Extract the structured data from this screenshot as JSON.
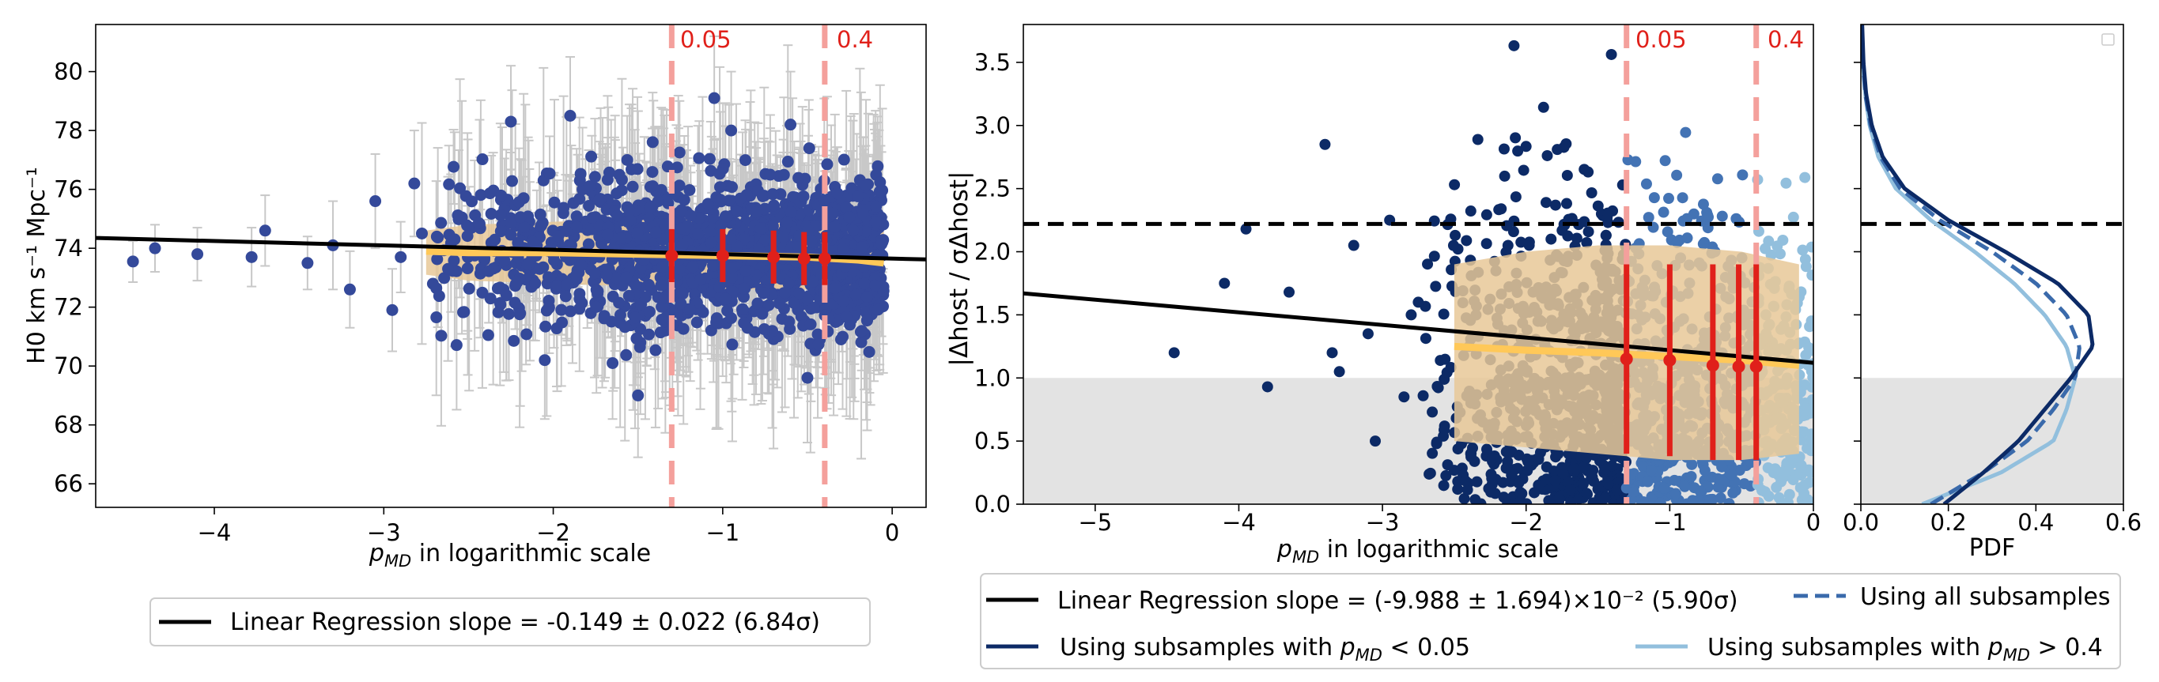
{
  "chart_data": [
    {
      "type": "scatter",
      "panel": "left",
      "xlabel_main": "p",
      "xlabel_sub": "MD",
      "xlabel_rest": " in logarithmic scale",
      "ylabel": "H0 km s⁻¹ Mpc⁻¹",
      "xlim": [
        -4.7,
        0.2
      ],
      "ylim": [
        65.2,
        81.6
      ],
      "xticks": [
        -4,
        -3,
        -2,
        -1,
        0
      ],
      "xtick_labels": [
        "−4",
        "−3",
        "−2",
        "−1",
        "0"
      ],
      "yticks": [
        66,
        68,
        70,
        72,
        74,
        76,
        78,
        80
      ],
      "threshold_lines": [
        {
          "x": -1.301,
          "label": "0.05"
        },
        {
          "x": -0.398,
          "label": "0.4"
        }
      ],
      "regression": {
        "x": [
          -4.7,
          0.2
        ],
        "y": [
          74.35,
          73.62
        ]
      },
      "band": {
        "x": [
          -2.75,
          -2.5,
          -2.0,
          -1.5,
          -1.0,
          -0.5,
          -0.2,
          -0.05
        ],
        "lower": [
          73.1,
          72.9,
          72.8,
          72.7,
          72.6,
          72.6,
          72.7,
          72.9
        ],
        "upper": [
          74.6,
          74.8,
          74.9,
          75.0,
          75.0,
          75.0,
          74.9,
          74.6
        ],
        "median": [
          73.9,
          73.85,
          73.85,
          73.8,
          73.75,
          73.7,
          73.6,
          73.5
        ]
      },
      "sparse_points": [
        {
          "x": -4.48,
          "y": 73.55,
          "err": 0.7
        },
        {
          "x": -4.35,
          "y": 74.0,
          "err": 0.8
        },
        {
          "x": -4.1,
          "y": 73.8,
          "err": 0.9
        },
        {
          "x": -3.78,
          "y": 73.7,
          "err": 1.0
        },
        {
          "x": -3.7,
          "y": 74.6,
          "err": 1.2
        },
        {
          "x": -3.45,
          "y": 73.5,
          "err": 0.9
        },
        {
          "x": -3.3,
          "y": 74.1,
          "err": 1.5
        },
        {
          "x": -3.2,
          "y": 72.6,
          "err": 1.3
        },
        {
          "x": -3.05,
          "y": 75.6,
          "err": 1.6
        },
        {
          "x": -2.95,
          "y": 71.9,
          "err": 1.4
        },
        {
          "x": -2.9,
          "y": 73.7,
          "err": 1.2
        },
        {
          "x": -2.82,
          "y": 76.2,
          "err": 1.8
        },
        {
          "x": -1.5,
          "y": 69.0,
          "err": 2.1
        },
        {
          "x": -2.25,
          "y": 78.3,
          "err": 1.9
        },
        {
          "x": -1.9,
          "y": 78.5,
          "err": 2.0
        },
        {
          "x": -0.95,
          "y": 78.0,
          "err": 2.0
        },
        {
          "x": -0.6,
          "y": 78.2,
          "err": 1.8
        },
        {
          "x": -1.65,
          "y": 70.1,
          "err": 1.9
        },
        {
          "x": -2.05,
          "y": 70.2,
          "err": 2.0
        },
        {
          "x": -0.5,
          "y": 69.6,
          "err": 2.2
        },
        {
          "x": -1.05,
          "y": 79.1,
          "err": 2.1
        }
      ],
      "bin_estimates": [
        {
          "x": -1.301,
          "y": 73.75,
          "err": 0.9
        },
        {
          "x": -1.0,
          "y": 73.75,
          "err": 0.9
        },
        {
          "x": -0.7,
          "y": 73.7,
          "err": 0.9
        },
        {
          "x": -0.52,
          "y": 73.65,
          "err": 0.9
        },
        {
          "x": -0.398,
          "y": 73.65,
          "err": 0.9
        }
      ],
      "cloud": {
        "x_start": -2.8,
        "x_end": -0.05,
        "y_center": 73.8,
        "y_spread": 2.1
      },
      "legend": [
        {
          "label": "Linear Regression slope = -0.149 ± 0.022 (6.84σ)",
          "style": "black-solid"
        }
      ],
      "colors": {
        "points": "#34499a",
        "errorbars": "#c8c8c8",
        "band": "#e8c898",
        "median": "#ffc858",
        "threshold": "#f4a09c",
        "estimates": "#e0201a",
        "regression": "#000000"
      }
    },
    {
      "type": "scatter",
      "panel": "middle",
      "xlabel_main": "p",
      "xlabel_sub": "MD",
      "xlabel_rest": " in logarithmic scale",
      "ylabel": "|Δhost / σΔhost|",
      "xlim": [
        -5.5,
        0.0
      ],
      "ylim": [
        0.0,
        3.8
      ],
      "xticks": [
        -5,
        -4,
        -3,
        -2,
        -1,
        0
      ],
      "xtick_labels": [
        "−5",
        "−4",
        "−3",
        "−2",
        "−1",
        "0"
      ],
      "yticks": [
        0.0,
        0.5,
        1.0,
        1.5,
        2.0,
        2.5,
        3.0,
        3.5
      ],
      "ytick_labels": [
        "0.0",
        "0.5",
        "1.0",
        "1.5",
        "2.0",
        "2.5",
        "3.0",
        "3.5"
      ],
      "threshold_lines": [
        {
          "x": -1.301,
          "label": "0.05"
        },
        {
          "x": -0.398,
          "label": "0.4"
        }
      ],
      "hline": 2.22,
      "gray_band": [
        0.0,
        1.0
      ],
      "regression": {
        "x": [
          -5.5,
          0.0
        ],
        "y": [
          1.67,
          1.12
        ]
      },
      "band": {
        "x": [
          -2.5,
          -2.0,
          -1.5,
          -1.0,
          -0.5,
          -0.1
        ],
        "lower": [
          0.5,
          0.45,
          0.4,
          0.35,
          0.35,
          0.4
        ],
        "upper": [
          1.9,
          2.0,
          2.05,
          2.05,
          2.0,
          1.9
        ],
        "median": [
          1.25,
          1.22,
          1.2,
          1.17,
          1.14,
          1.1
        ]
      },
      "sparse_points": [
        {
          "x": -4.45,
          "y": 1.2
        },
        {
          "x": -4.1,
          "y": 1.75
        },
        {
          "x": -3.95,
          "y": 2.18
        },
        {
          "x": -3.8,
          "y": 0.93
        },
        {
          "x": -3.65,
          "y": 1.68
        },
        {
          "x": -3.4,
          "y": 2.85
        },
        {
          "x": -3.35,
          "y": 1.2
        },
        {
          "x": -3.3,
          "y": 1.05
        },
        {
          "x": -3.2,
          "y": 2.05
        },
        {
          "x": -3.1,
          "y": 1.35
        },
        {
          "x": -3.05,
          "y": 0.5
        },
        {
          "x": -2.95,
          "y": 2.25
        },
        {
          "x": -2.85,
          "y": 0.85
        },
        {
          "x": -2.8,
          "y": 1.5
        }
      ],
      "bin_estimates": [
        {
          "x": -1.301,
          "y": 1.15,
          "lo": 0.4,
          "hi": 1.9
        },
        {
          "x": -1.0,
          "y": 1.14,
          "lo": 0.38,
          "hi": 1.9
        },
        {
          "x": -0.7,
          "y": 1.1,
          "lo": 0.35,
          "hi": 1.9
        },
        {
          "x": -0.52,
          "y": 1.09,
          "lo": 0.35,
          "hi": 1.9
        },
        {
          "x": -0.398,
          "y": 1.09,
          "lo": 0.35,
          "hi": 1.9
        }
      ],
      "clouds": [
        {
          "x_start": -2.8,
          "x_end": -1.301,
          "color": "#0c2a66"
        },
        {
          "x_start": -1.301,
          "x_end": -0.398,
          "color": "#4373b4"
        },
        {
          "x_start": -0.398,
          "x_end": 0.0,
          "color": "#92bfdd"
        }
      ],
      "legend": [
        {
          "label": "Linear Regression slope = (-9.988 ± 1.694)×10⁻² (5.90σ)",
          "style": "black-solid"
        },
        {
          "label": "Using all subsamples",
          "style": "blue-dashed"
        },
        {
          "label_pre": "Using subsamples with ",
          "label_rest": " < 0.05",
          "style": "navy-solid"
        },
        {
          "label_pre": "Using subsamples with ",
          "label_rest": " > 0.4",
          "style": "light-solid"
        }
      ],
      "colors": {
        "navy": "#0c2a66",
        "mid": "#4373b4",
        "light": "#92bfdd",
        "band": "#e8c898",
        "median": "#ffc858",
        "threshold": "#f4a09c",
        "estimates": "#e0201a",
        "gray": "#e3e3e3"
      }
    },
    {
      "type": "line",
      "panel": "right",
      "xlabel": "PDF",
      "xlim": [
        0.0,
        0.6
      ],
      "ylim": [
        0.0,
        3.8
      ],
      "xticks": [
        0.0,
        0.2,
        0.4,
        0.6
      ],
      "xtick_labels": [
        "0.0",
        "0.2",
        "0.4",
        "0.6"
      ],
      "hline": 2.22,
      "gray_band": [
        0.0,
        1.0
      ],
      "series": [
        {
          "name": "Using subsamples with pMD < 0.05",
          "style": "solid",
          "color": "#0c2a66",
          "y": [
            0.0,
            0.25,
            0.5,
            0.75,
            1.0,
            1.25,
            1.5,
            1.75,
            2.0,
            2.25,
            2.5,
            2.75,
            3.0,
            3.25,
            3.5,
            3.8
          ],
          "x": [
            0.19,
            0.28,
            0.36,
            0.42,
            0.48,
            0.53,
            0.52,
            0.45,
            0.33,
            0.2,
            0.1,
            0.05,
            0.025,
            0.012,
            0.006,
            0.003
          ]
        },
        {
          "name": "Using all subsamples",
          "style": "dashed",
          "color": "#3a6aab",
          "y": [
            0.0,
            0.25,
            0.5,
            0.75,
            1.0,
            1.25,
            1.5,
            1.75,
            2.0,
            2.25,
            2.5,
            2.75,
            3.0,
            3.25,
            3.5,
            3.8
          ],
          "x": [
            0.16,
            0.28,
            0.38,
            0.44,
            0.49,
            0.5,
            0.47,
            0.4,
            0.3,
            0.18,
            0.09,
            0.045,
            0.022,
            0.01,
            0.005,
            0.002
          ]
        },
        {
          "name": "Using subsamples with pMD > 0.4",
          "style": "solid",
          "color": "#92bfdd",
          "y": [
            0.0,
            0.25,
            0.5,
            0.75,
            1.0,
            1.25,
            1.5,
            1.75,
            2.0,
            2.25,
            2.5,
            2.75,
            3.0,
            3.25,
            3.5,
            3.8
          ],
          "x": [
            0.14,
            0.32,
            0.44,
            0.47,
            0.49,
            0.47,
            0.42,
            0.35,
            0.26,
            0.16,
            0.08,
            0.04,
            0.02,
            0.01,
            0.004,
            0.002
          ]
        }
      ],
      "legend_box": "top-right (empty)"
    }
  ]
}
